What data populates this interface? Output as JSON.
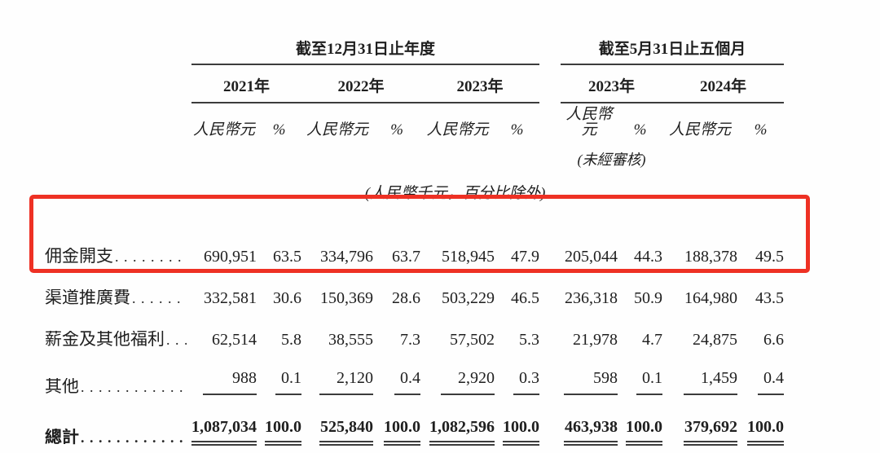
{
  "table": {
    "col_groups": [
      {
        "title": "截至12月31日止年度",
        "years": [
          "2021年",
          "2022年",
          "2023年"
        ]
      },
      {
        "title": "截至5月31日止五個月",
        "years": [
          "2023年",
          "2024年"
        ]
      }
    ],
    "unit_headers": {
      "currency": "人民幣元",
      "percent": "%"
    },
    "unaudited_note": "(未經審核)",
    "units_note": "(人民幣千元，百分比除外)",
    "rows": [
      {
        "label": "佣金開支",
        "values": [
          "690,951",
          "63.5",
          "334,796",
          "63.7",
          "518,945",
          "47.9",
          "205,044",
          "44.3",
          "188,378",
          "49.5"
        ],
        "highlighted": true
      },
      {
        "label": "渠道推廣費",
        "values": [
          "332,581",
          "30.6",
          "150,369",
          "28.6",
          "503,229",
          "46.5",
          "236,318",
          "50.9",
          "164,980",
          "43.5"
        ],
        "highlighted": true
      },
      {
        "label": "薪金及其他福利",
        "values": [
          "62,514",
          "5.8",
          "38,555",
          "7.3",
          "57,502",
          "5.3",
          "21,978",
          "4.7",
          "24,875",
          "6.6"
        ]
      },
      {
        "label": "其他",
        "values": [
          "988",
          "0.1",
          "2,120",
          "0.4",
          "2,920",
          "0.3",
          "598",
          "0.1",
          "1,459",
          "0.4"
        ],
        "underline": true
      },
      {
        "label": "總計",
        "values": [
          "1,087,034",
          "100.0",
          "525,840",
          "100.0",
          "1,082,596",
          "100.0",
          "463,938",
          "100.0",
          "379,692",
          "100.0"
        ],
        "total": true
      }
    ],
    "highlight_color": "#ee3124"
  }
}
